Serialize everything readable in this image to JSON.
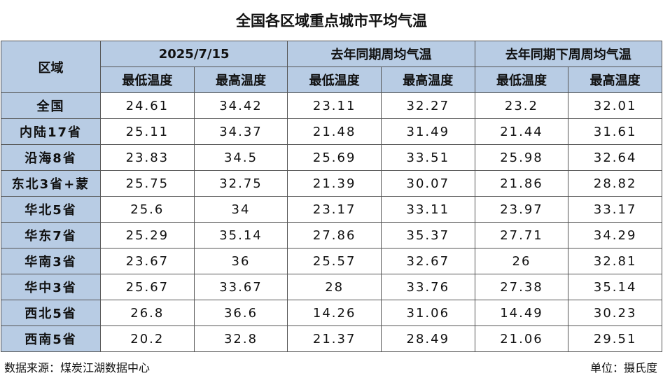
{
  "title": "全国各区域重点城市平均气温",
  "table": {
    "corner": "区域",
    "groups": [
      "2025/7/15",
      "去年同期周均气温",
      "去年同期下周周均气温"
    ],
    "subheaders": [
      "最低温度",
      "最高温度",
      "最低温度",
      "最高温度",
      "最低温度",
      "最高温度"
    ],
    "rows": [
      {
        "region": "全国",
        "values": [
          24.61,
          34.42,
          23.11,
          32.27,
          23.2,
          32.01
        ]
      },
      {
        "region": "内陆17省",
        "values": [
          25.11,
          34.37,
          21.48,
          31.49,
          21.44,
          31.61
        ]
      },
      {
        "region": "沿海8省",
        "values": [
          23.83,
          34.5,
          25.69,
          33.51,
          25.98,
          32.64
        ]
      },
      {
        "region": "东北3省+蒙",
        "values": [
          25.75,
          32.75,
          21.39,
          30.07,
          21.86,
          28.82
        ]
      },
      {
        "region": "华北5省",
        "values": [
          25.6,
          34,
          23.17,
          33.11,
          23.97,
          33.17
        ]
      },
      {
        "region": "华东7省",
        "values": [
          25.29,
          35.14,
          27.86,
          35.37,
          27.71,
          34.29
        ]
      },
      {
        "region": "华南3省",
        "values": [
          23.67,
          36,
          25.57,
          32.67,
          26,
          32.81
        ]
      },
      {
        "region": "华中3省",
        "values": [
          25.67,
          33.67,
          28,
          33.76,
          27.38,
          35.14
        ]
      },
      {
        "region": "西北5省",
        "values": [
          26.8,
          36.6,
          14.26,
          31.06,
          14.49,
          30.23
        ]
      },
      {
        "region": "西南5省",
        "values": [
          20.2,
          32.8,
          21.37,
          28.49,
          21.06,
          29.51
        ]
      }
    ]
  },
  "footer": {
    "source": "数据来源：煤炭江湖数据中心",
    "unit": "单位：摄氏度"
  }
}
